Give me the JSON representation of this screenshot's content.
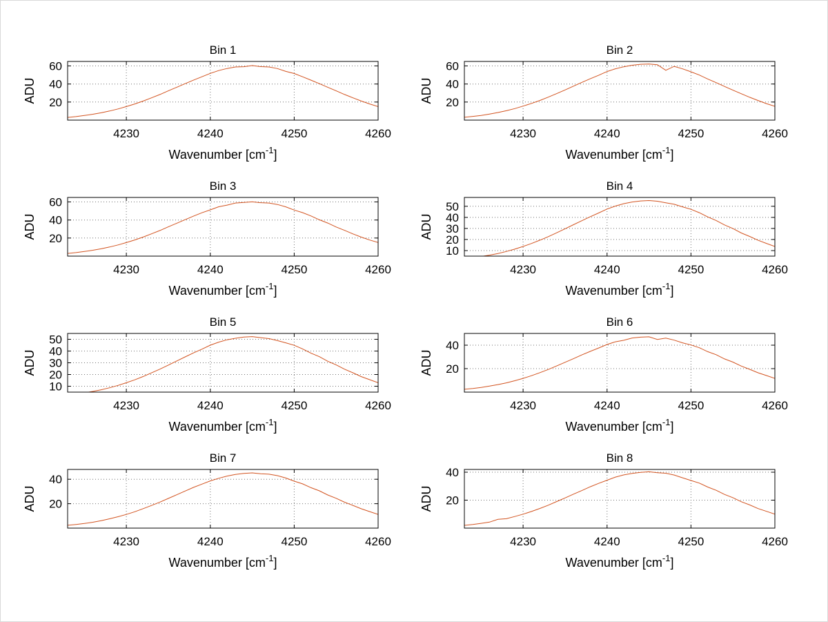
{
  "figure": {
    "background": "#ffffff",
    "line_color": "#d2521e",
    "grid_color": "#6f6f6f"
  },
  "chart_data": {
    "type": "line",
    "xlabel": "Wavenumber [cm^-1]",
    "xlabel_parts": {
      "main": "Wavenumber [cm",
      "sup": "-1",
      "close": "]"
    },
    "ylabel": "ADU",
    "xlim": [
      4223,
      4260
    ],
    "xticks": [
      4230,
      4240,
      4250,
      4260
    ],
    "grid": true,
    "legend": false,
    "x": [
      4223,
      4224,
      4225,
      4226,
      4227,
      4228,
      4229,
      4230,
      4231,
      4232,
      4233,
      4234,
      4235,
      4236,
      4237,
      4238,
      4239,
      4240,
      4241,
      4242,
      4243,
      4244,
      4245,
      4246,
      4247,
      4248,
      4249,
      4250,
      4251,
      4252,
      4253,
      4254,
      4255,
      4256,
      4257,
      4258,
      4259,
      4260
    ],
    "subplots": [
      {
        "title": "Bin 1",
        "ylim": [
          0,
          65
        ],
        "yticks": [
          20,
          40,
          60
        ],
        "values": [
          3.0,
          3.9,
          5.1,
          6.5,
          8.1,
          10.1,
          12.4,
          15.0,
          17.9,
          21.1,
          24.7,
          28.4,
          32.4,
          36.4,
          40.4,
          44.3,
          48.0,
          51.8,
          54.9,
          57.2,
          58.9,
          59.2,
          60.4,
          59.3,
          58.9,
          57.1,
          54.0,
          51.6,
          48.0,
          44.3,
          40.4,
          36.4,
          32.4,
          28.4,
          24.7,
          21.1,
          17.9,
          15.0
        ]
      },
      {
        "title": "Bin 2",
        "ylim": [
          0,
          65
        ],
        "yticks": [
          20,
          40,
          60
        ],
        "values": [
          3.1,
          4.1,
          5.2,
          6.7,
          8.4,
          10.4,
          12.8,
          15.5,
          18.5,
          21.8,
          25.5,
          29.4,
          33.4,
          37.6,
          41.8,
          45.8,
          49.6,
          53.8,
          56.9,
          59.1,
          60.8,
          61.9,
          62.2,
          61.4,
          55.2,
          59.6,
          56.8,
          53.5,
          49.9,
          45.6,
          41.5,
          37.3,
          33.2,
          29.2,
          25.3,
          21.7,
          18.3,
          15.3
        ]
      },
      {
        "title": "Bin 3",
        "ylim": [
          0,
          65
        ],
        "yticks": [
          20,
          40,
          60
        ],
        "values": [
          3.0,
          3.9,
          5.1,
          6.5,
          8.1,
          10.1,
          12.4,
          15.0,
          17.9,
          21.1,
          24.7,
          28.4,
          32.4,
          36.4,
          40.4,
          44.3,
          48.0,
          51.2,
          54.7,
          56.5,
          58.8,
          59.5,
          60.1,
          59.2,
          58.8,
          57.2,
          54.6,
          51.0,
          48.2,
          44.5,
          40.2,
          36.6,
          32.3,
          28.5,
          24.6,
          21.0,
          17.8,
          15.1
        ]
      },
      {
        "title": "Bin 4",
        "ylim": [
          5,
          58
        ],
        "yticks": [
          10,
          20,
          30,
          40,
          50
        ],
        "values": [
          2.8,
          3.6,
          4.7,
          5.9,
          7.4,
          9.2,
          11.3,
          13.7,
          16.4,
          19.4,
          22.6,
          26.1,
          29.7,
          33.4,
          37.0,
          40.6,
          44.0,
          47.5,
          50.2,
          52.4,
          53.9,
          54.8,
          55.2,
          54.6,
          53.2,
          51.8,
          49.5,
          47.3,
          44.2,
          40.4,
          37.2,
          33.2,
          29.9,
          25.9,
          22.8,
          19.3,
          16.5,
          13.7
        ]
      },
      {
        "title": "Bin 5",
        "ylim": [
          5,
          55
        ],
        "yticks": [
          10,
          20,
          30,
          40,
          50
        ],
        "values": [
          2.6,
          3.4,
          4.4,
          5.6,
          7.0,
          8.7,
          10.7,
          13.0,
          15.5,
          18.3,
          21.4,
          24.6,
          28.0,
          31.5,
          35.0,
          38.4,
          41.6,
          45.0,
          47.6,
          49.6,
          50.9,
          51.9,
          52.3,
          51.4,
          50.6,
          48.9,
          47.0,
          44.9,
          41.8,
          38.2,
          35.2,
          31.3,
          28.2,
          24.5,
          21.5,
          18.2,
          15.6,
          13.0
        ]
      },
      {
        "title": "Bin 6",
        "ylim": [
          0,
          50
        ],
        "yticks": [
          20,
          40
        ],
        "values": [
          2.4,
          3.1,
          4.0,
          5.1,
          6.4,
          7.9,
          9.7,
          11.7,
          14.0,
          16.6,
          19.3,
          22.3,
          25.4,
          28.5,
          31.7,
          34.7,
          37.6,
          40.6,
          42.9,
          44.2,
          46.1,
          46.8,
          47.1,
          44.9,
          46.0,
          44.3,
          42.0,
          40.2,
          37.8,
          34.5,
          31.9,
          28.3,
          25.6,
          22.2,
          19.4,
          16.5,
          14.1,
          11.7
        ]
      },
      {
        "title": "Bin 7",
        "ylim": [
          0,
          48
        ],
        "yticks": [
          20,
          40
        ],
        "values": [
          2.3,
          3.0,
          3.8,
          4.8,
          6.1,
          7.6,
          9.3,
          11.2,
          13.4,
          15.9,
          18.5,
          21.3,
          24.3,
          27.3,
          30.3,
          33.3,
          36.0,
          38.6,
          40.8,
          42.6,
          43.9,
          44.7,
          45.2,
          44.5,
          44.1,
          42.9,
          41.0,
          38.4,
          36.2,
          33.1,
          30.5,
          27.1,
          24.4,
          21.2,
          18.6,
          15.8,
          13.5,
          11.2
        ]
      },
      {
        "title": "Bin 8",
        "ylim": [
          0,
          42
        ],
        "yticks": [
          20,
          40
        ],
        "values": [
          2.0,
          2.6,
          3.4,
          4.3,
          6.3,
          6.7,
          8.3,
          10.0,
          11.9,
          14.1,
          16.4,
          19.0,
          21.6,
          24.3,
          26.9,
          29.6,
          32.0,
          34.3,
          36.5,
          38.1,
          39.2,
          39.9,
          40.3,
          39.7,
          39.3,
          38.0,
          36.0,
          34.1,
          32.2,
          29.4,
          27.1,
          24.1,
          21.8,
          18.9,
          16.6,
          14.0,
          12.0,
          10.0
        ]
      }
    ]
  }
}
